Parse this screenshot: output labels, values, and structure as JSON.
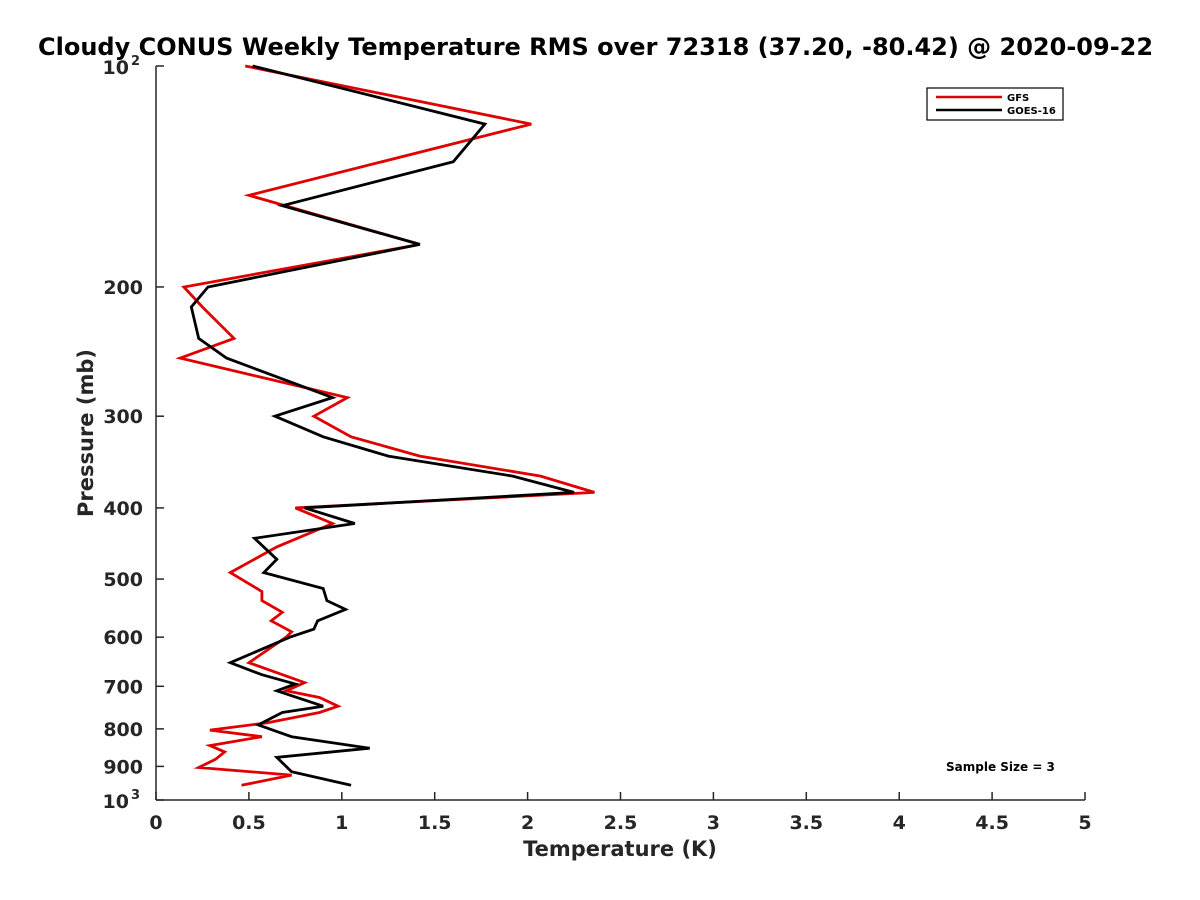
{
  "chart_data": {
    "type": "line",
    "title": "Cloudy CONUS Weekly Temperature RMS over 72318 (37.20, -80.42) @ 2020-09-22",
    "xlabel": "Temperature (K)",
    "ylabel": "Pressure (mb)",
    "xlim": [
      0,
      5
    ],
    "ylim": [
      100,
      1000
    ],
    "y_scale": "log",
    "y_reversed": true,
    "x_ticks": [
      "0",
      "0.5",
      "1",
      "1.5",
      "2",
      "2.5",
      "3",
      "3.5",
      "4",
      "4.5",
      "5"
    ],
    "y_ticks": [
      {
        "value": 100,
        "base": "10",
        "exp": "2"
      },
      {
        "value": 200,
        "label": "200"
      },
      {
        "value": 300,
        "label": "300"
      },
      {
        "value": 400,
        "label": "400"
      },
      {
        "value": 500,
        "label": "500"
      },
      {
        "value": 600,
        "label": "600"
      },
      {
        "value": 700,
        "label": "700"
      },
      {
        "value": 800,
        "label": "800"
      },
      {
        "value": 900,
        "label": "900"
      },
      {
        "value": 1000,
        "base": "10",
        "exp": "3"
      }
    ],
    "legend_position": "top-right",
    "annotation": "Sample Size = 3",
    "series": [
      {
        "name": "GFS",
        "color": "#e00000",
        "points": [
          [
            0.48,
            100
          ],
          [
            2.02,
            120
          ],
          [
            0.5,
            150
          ],
          [
            1.42,
            175
          ],
          [
            0.15,
            200
          ],
          [
            0.25,
            213
          ],
          [
            0.42,
            235
          ],
          [
            0.13,
            250
          ],
          [
            1.03,
            283
          ],
          [
            0.85,
            300
          ],
          [
            1.05,
            320
          ],
          [
            1.42,
            340
          ],
          [
            2.07,
            362
          ],
          [
            2.36,
            381
          ],
          [
            0.75,
            400
          ],
          [
            0.95,
            420
          ],
          [
            0.65,
            452
          ],
          [
            0.4,
            490
          ],
          [
            0.57,
            520
          ],
          [
            0.57,
            535
          ],
          [
            0.68,
            555
          ],
          [
            0.62,
            570
          ],
          [
            0.73,
            590
          ],
          [
            0.7,
            600
          ],
          [
            0.5,
            650
          ],
          [
            0.8,
            692
          ],
          [
            0.7,
            710
          ],
          [
            0.88,
            725
          ],
          [
            0.98,
            745
          ],
          [
            0.88,
            760
          ],
          [
            0.6,
            785
          ],
          [
            0.29,
            803
          ],
          [
            0.57,
            820
          ],
          [
            0.29,
            843
          ],
          [
            0.37,
            860
          ],
          [
            0.32,
            880
          ],
          [
            0.23,
            903
          ],
          [
            0.73,
            925
          ],
          [
            0.46,
            955
          ]
        ]
      },
      {
        "name": "GOES-16",
        "color": "#000000",
        "points": [
          [
            0.52,
            100
          ],
          [
            1.77,
            120
          ],
          [
            1.6,
            135
          ],
          [
            0.68,
            155
          ],
          [
            1.42,
            175
          ],
          [
            0.28,
            200
          ],
          [
            0.19,
            213
          ],
          [
            0.23,
            235
          ],
          [
            0.38,
            250
          ],
          [
            0.95,
            283
          ],
          [
            0.64,
            300
          ],
          [
            0.9,
            320
          ],
          [
            1.25,
            340
          ],
          [
            1.92,
            362
          ],
          [
            2.25,
            381
          ],
          [
            0.8,
            400
          ],
          [
            1.07,
            420
          ],
          [
            0.53,
            440
          ],
          [
            0.65,
            470
          ],
          [
            0.58,
            490
          ],
          [
            0.9,
            515
          ],
          [
            0.92,
            535
          ],
          [
            1.02,
            550
          ],
          [
            0.87,
            570
          ],
          [
            0.85,
            585
          ],
          [
            0.72,
            600
          ],
          [
            0.4,
            650
          ],
          [
            0.57,
            675
          ],
          [
            0.75,
            695
          ],
          [
            0.65,
            710
          ],
          [
            0.9,
            745
          ],
          [
            0.68,
            760
          ],
          [
            0.55,
            790
          ],
          [
            0.73,
            820
          ],
          [
            1.15,
            850
          ],
          [
            0.65,
            875
          ],
          [
            0.73,
            915
          ],
          [
            1.05,
            955
          ]
        ]
      }
    ]
  }
}
